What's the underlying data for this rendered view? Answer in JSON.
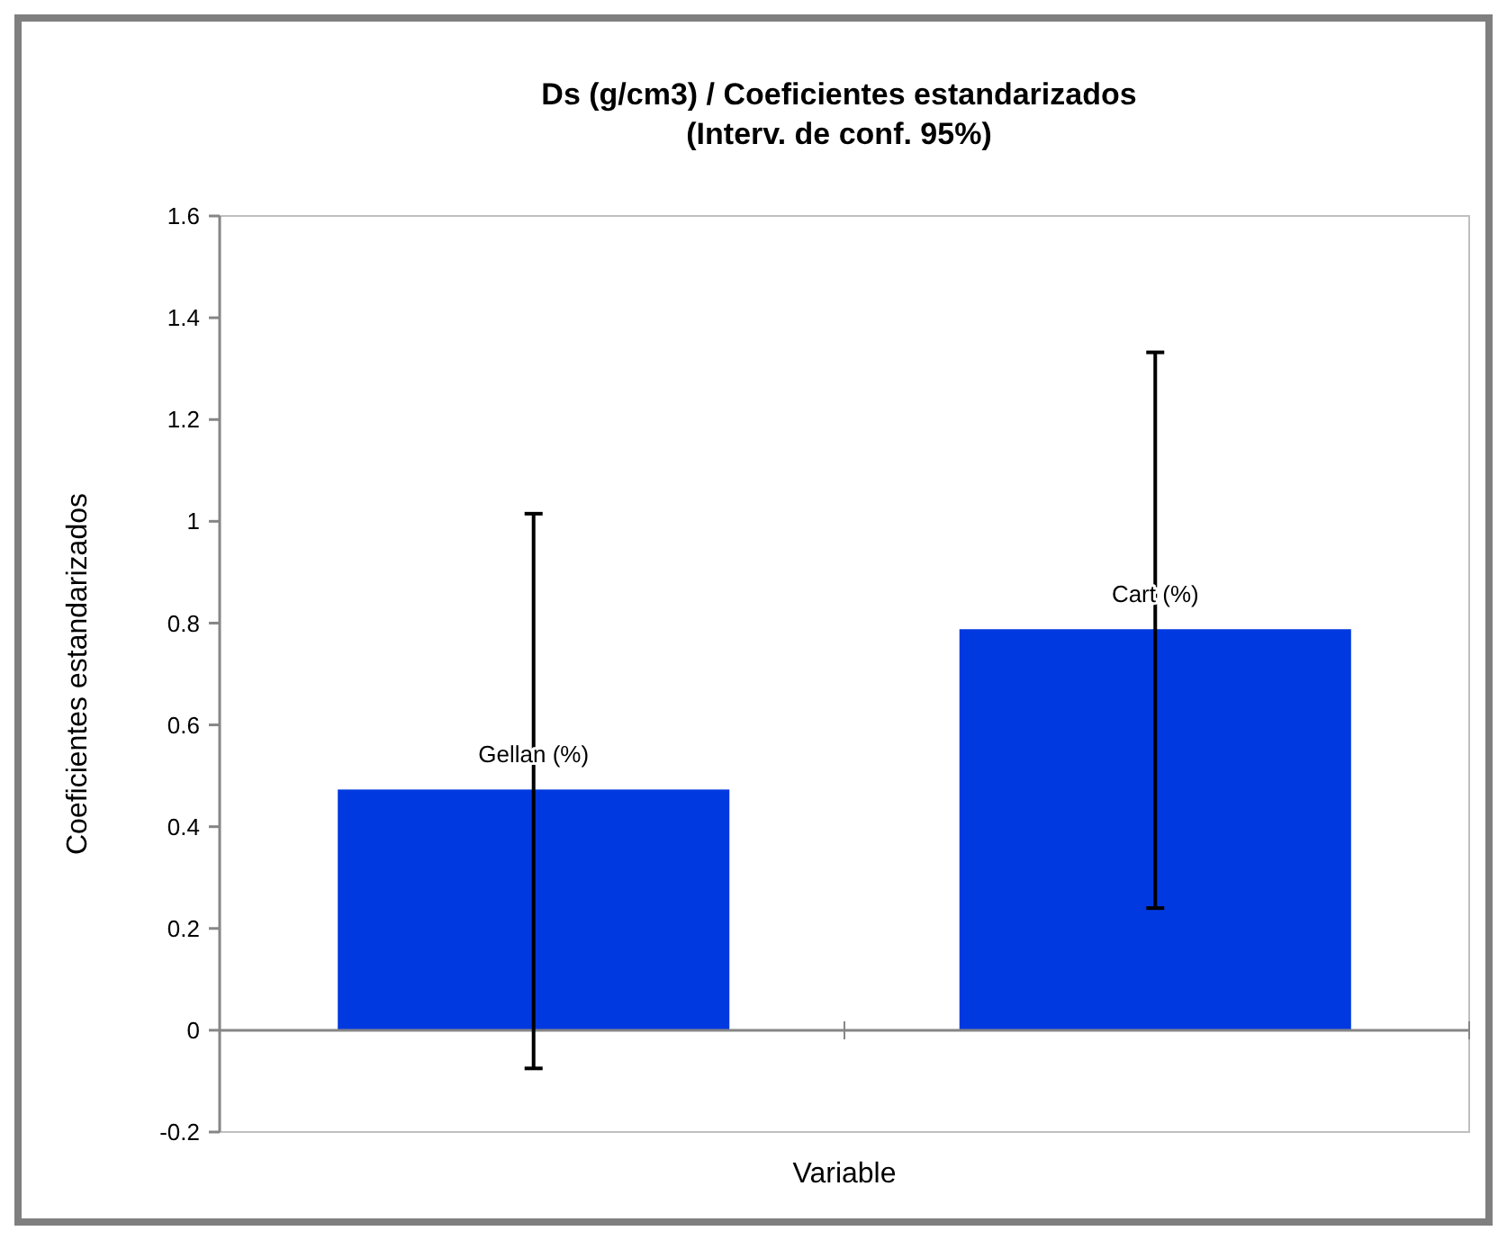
{
  "chart_data": {
    "type": "bar",
    "title": "Ds (g/cm3) / Coeficientes estandarizados\n(Interv. de conf. 95%)",
    "xlabel": "Variable",
    "ylabel": "Coeficientes estandarizados",
    "categories": [
      "Gellan (%)",
      "Cart (%)"
    ],
    "values": [
      0.473,
      0.788
    ],
    "errors": [
      [
        -0.075,
        1.015
      ],
      [
        0.24,
        1.332
      ]
    ],
    "color": "#0039e0",
    "ylim": [
      -0.2,
      1.6
    ],
    "yticks": [
      -0.2,
      0,
      0.2,
      0.4,
      0.6,
      0.8,
      1,
      1.2,
      1.4,
      1.6
    ]
  }
}
